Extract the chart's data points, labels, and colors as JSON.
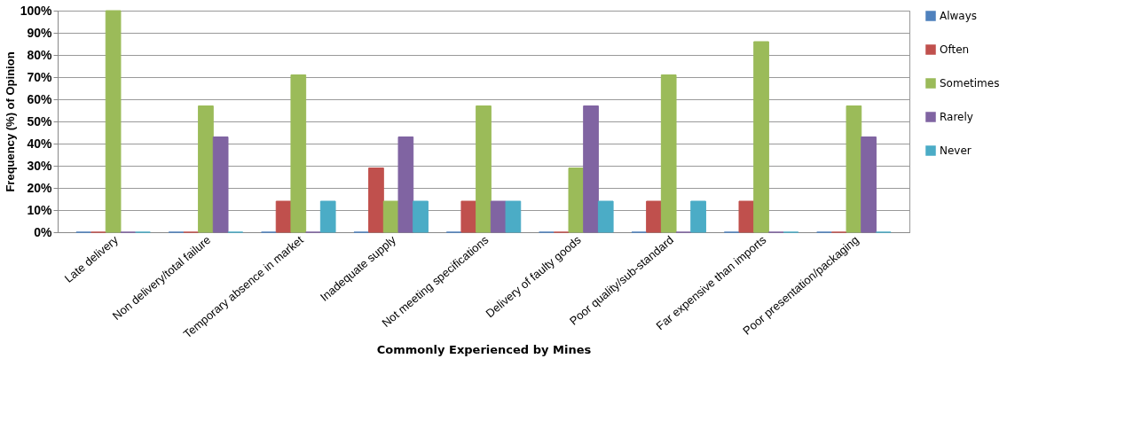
{
  "chart_data": {
    "type": "bar",
    "xlabel": "Commonly Experienced by Mines",
    "ylabel": "Frequency (%) of Opinion",
    "categories": [
      "Late delivery",
      "Non delivery/total failure",
      "Temporary absence in market",
      "Inadequate supply",
      "Not meeting specifications",
      "Delivery of faulty goods",
      "Poor quality/sub-standard",
      "Far expensive than imports",
      "Poor presentation/packaging"
    ],
    "series": [
      {
        "name": "Always",
        "color": "#4f81bd",
        "values": [
          0,
          0,
          0,
          0,
          0,
          0,
          0,
          0,
          0
        ]
      },
      {
        "name": "Often",
        "color": "#c0504d",
        "values": [
          0,
          0,
          14,
          29,
          14,
          0,
          14,
          14,
          0
        ]
      },
      {
        "name": "Sometimes",
        "color": "#9bbb59",
        "values": [
          100,
          57,
          71,
          14,
          57,
          29,
          71,
          86,
          57
        ]
      },
      {
        "name": "Rarely",
        "color": "#8064a2",
        "values": [
          0,
          43,
          0,
          43,
          14,
          57,
          0,
          0,
          43
        ]
      },
      {
        "name": "Never",
        "color": "#4bacc6",
        "values": [
          0,
          0,
          14,
          14,
          14,
          14,
          14,
          0,
          0
        ]
      }
    ],
    "ylim": [
      0,
      100
    ],
    "yticks": [
      {
        "value": 0,
        "label": "0%"
      },
      {
        "value": 10,
        "label": "10%"
      },
      {
        "value": 20,
        "label": "20%"
      },
      {
        "value": 30,
        "label": "30%"
      },
      {
        "value": 40,
        "label": "40%"
      },
      {
        "value": 50,
        "label": "50%"
      },
      {
        "value": 60,
        "label": "60%"
      },
      {
        "value": 70,
        "label": "70%"
      },
      {
        "value": 80,
        "label": "80%"
      },
      {
        "value": 90,
        "label": "90%"
      },
      {
        "value": 100,
        "label": "100%"
      }
    ],
    "grid": "y",
    "legend": "right"
  }
}
